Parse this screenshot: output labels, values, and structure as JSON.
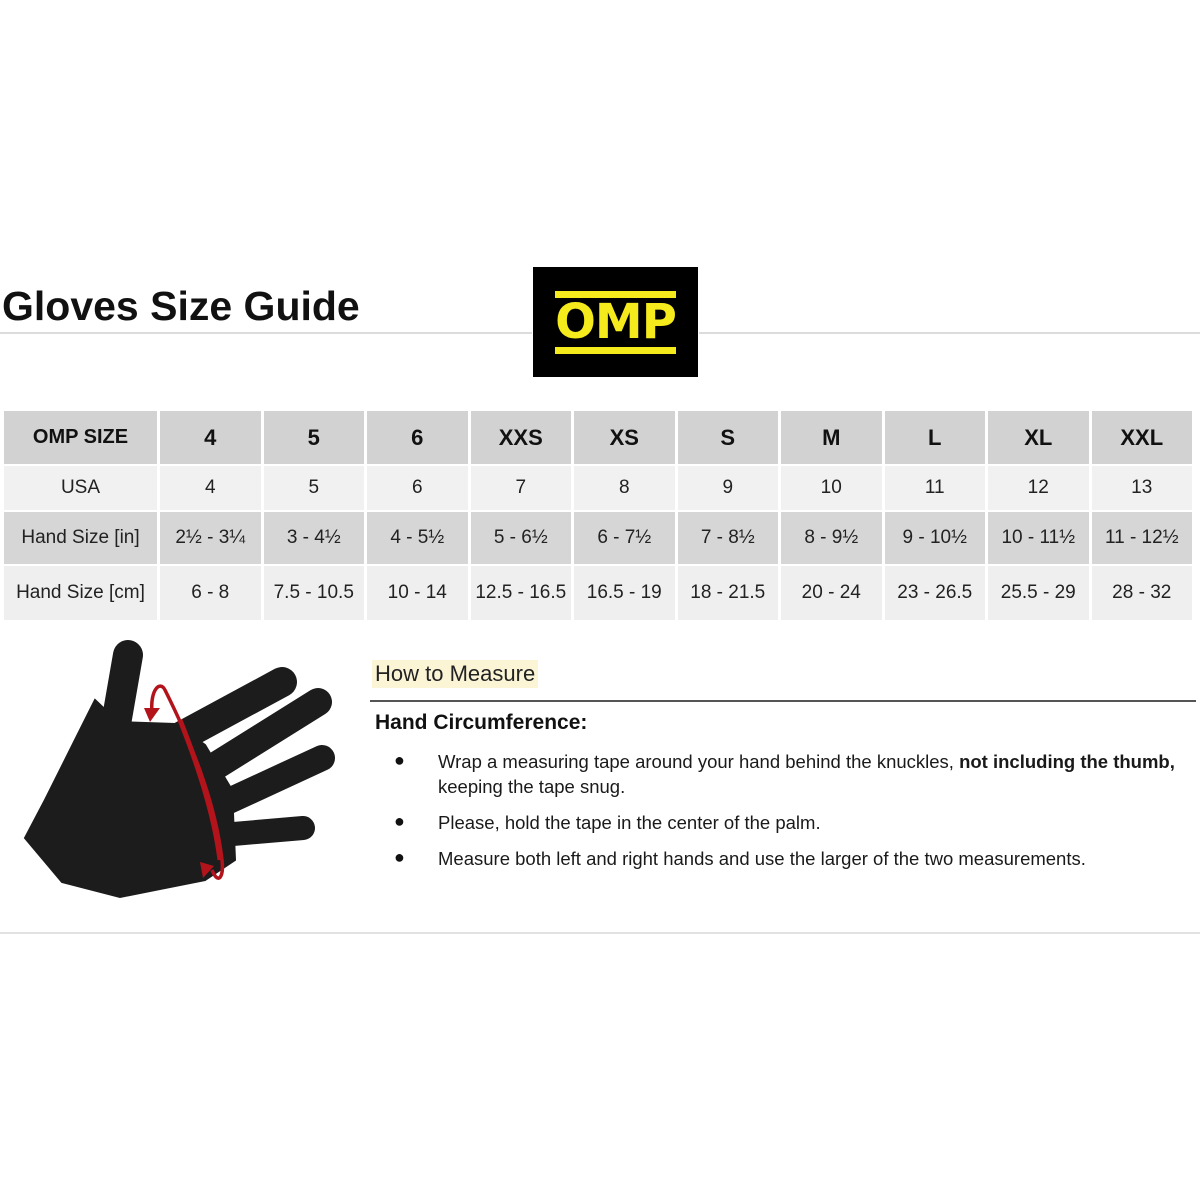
{
  "title": "Gloves Size Guide",
  "logo": {
    "text": "OMP",
    "background": "#000000",
    "color": "#f4ea1c"
  },
  "table": {
    "rows": [
      {
        "label": "OMP SIZE",
        "values": [
          "4",
          "5",
          "6",
          "XXS",
          "XS",
          "S",
          "M",
          "L",
          "XL",
          "XXL"
        ]
      },
      {
        "label": "USA",
        "values": [
          "4",
          "5",
          "6",
          "7",
          "8",
          "9",
          "10",
          "11",
          "12",
          "13"
        ]
      },
      {
        "label": "Hand Size [in]",
        "values": [
          "2½ - 3¼",
          "3 - 4½",
          "4 - 5½",
          "5 - 6½",
          "6 - 7½",
          "7 - 8½",
          "8 - 9½",
          "9 - 10½",
          "10 - 11½",
          "11 - 12½"
        ]
      },
      {
        "label": "Hand Size [cm]",
        "values": [
          "6 - 8",
          "7.5 - 10.5",
          "10 - 14",
          "12.5 - 16.5",
          "16.5 - 19",
          "18 - 21.5",
          "20 - 24",
          "23 - 26.5",
          "25.5 - 29",
          "28 - 32"
        ]
      }
    ]
  },
  "illustration": {
    "icon": "hand-measure-icon",
    "hand_color": "#1c1c1c",
    "tape_color": "#b3141c"
  },
  "how_to": {
    "heading": "How to Measure",
    "subheading": "Hand Circumference:",
    "bullets": [
      {
        "text": "Wrap a measuring tape around your hand behind the knuckles, ",
        "bold": "not including the thumb,",
        "rest": " keeping the tape snug."
      },
      {
        "text": "Please, hold the tape in the center of the palm."
      },
      {
        "text": "Measure both left and right hands and use the larger of the two measurements."
      }
    ]
  }
}
